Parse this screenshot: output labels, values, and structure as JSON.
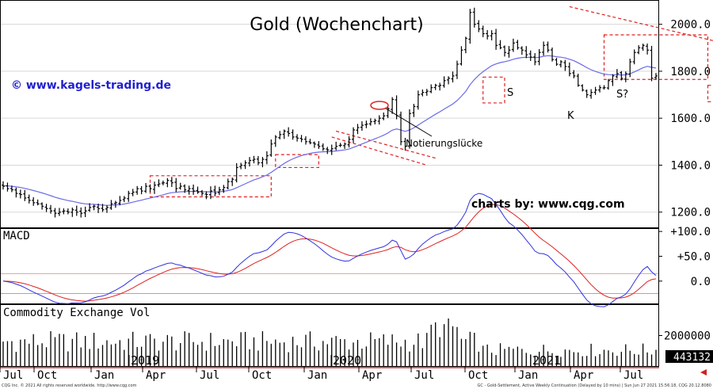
{
  "chart_data": [
    {
      "type": "ohlc",
      "title": "Gold (Wochenchart)",
      "watermark": "© www.kagels-trading.de",
      "credit": "charts by: www.cqg.com",
      "y_ticks": [
        "2000.0",
        "1800.0",
        "1600.0",
        "1400.0",
        "1200.0"
      ],
      "ylim": [
        1135,
        2100
      ],
      "x_ticks": [
        "Jul",
        "Oct",
        "Jan",
        "Apr",
        "Jul",
        "Oct",
        "Jan",
        "Apr",
        "Jul",
        "Oct",
        "Jan",
        "Apr",
        "Jul"
      ],
      "year_labels": [
        "2019",
        "2020",
        "2021"
      ],
      "close": [
        1310,
        1300,
        1295,
        1280,
        1275,
        1260,
        1250,
        1240,
        1235,
        1225,
        1215,
        1205,
        1195,
        1200,
        1205,
        1200,
        1210,
        1200,
        1195,
        1205,
        1220,
        1225,
        1215,
        1210,
        1220,
        1235,
        1240,
        1250,
        1260,
        1280,
        1285,
        1300,
        1290,
        1310,
        1300,
        1315,
        1320,
        1325,
        1335,
        1325,
        1300,
        1310,
        1295,
        1300,
        1290,
        1285,
        1280,
        1275,
        1290,
        1280,
        1295,
        1305,
        1330,
        1340,
        1390,
        1400,
        1410,
        1420,
        1425,
        1410,
        1425,
        1440,
        1490,
        1520,
        1530,
        1545,
        1535,
        1520,
        1515,
        1510,
        1500,
        1495,
        1490,
        1480,
        1470,
        1465,
        1470,
        1480,
        1485,
        1490,
        1510,
        1550,
        1560,
        1570,
        1575,
        1585,
        1590,
        1600,
        1610,
        1640,
        1680,
        1610,
        1500,
        1480,
        1620,
        1650,
        1700,
        1710,
        1715,
        1730,
        1740,
        1740,
        1760,
        1770,
        1780,
        1830,
        1890,
        1940,
        2050,
        2000,
        1980,
        1960,
        1950,
        1960,
        1910,
        1900,
        1880,
        1890,
        1920,
        1900,
        1890,
        1870,
        1860,
        1840,
        1880,
        1910,
        1890,
        1850,
        1830,
        1840,
        1820,
        1790,
        1780,
        1740,
        1720,
        1700,
        1710,
        1720,
        1730,
        1730,
        1760,
        1780,
        1790,
        1770,
        1790,
        1840,
        1880,
        1900,
        1910,
        1890,
        1770,
        1780
      ],
      "ma_start": 1313,
      "patterns": [
        {
          "type": "rect",
          "i0": 34,
          "i1": 62,
          "v0": 1265,
          "v1": 1355
        },
        {
          "type": "rect",
          "i0": 63,
          "i1": 73,
          "v0": 1390,
          "v1": 1445
        },
        {
          "type": "rect",
          "i0": 111,
          "i1": 116,
          "v0": 1665,
          "v1": 1775
        },
        {
          "type": "rect",
          "i0": 139,
          "i1": 163,
          "v0": 1765,
          "v1": 1955
        },
        {
          "type": "rect",
          "i0": 163,
          "i1": 173,
          "v0": 1670,
          "v1": 1740
        },
        {
          "type": "line",
          "i0": 77,
          "v0": 1545,
          "i1": 100,
          "v1": 1430
        },
        {
          "type": "line",
          "i0": 76,
          "v0": 1520,
          "i1": 98,
          "v1": 1400
        },
        {
          "type": "line",
          "i0": 131,
          "v0": 2075,
          "i1": 193,
          "v1": 1805
        }
      ],
      "annotations": {
        "notierungsluecke": "Notierungslücke",
        "s_left": "S",
        "s_right": "S?",
        "k": "K"
      }
    },
    {
      "type": "line",
      "title": "MACD",
      "y_ticks": [
        "+100.0",
        "+50.0",
        "0.0"
      ],
      "ylim": [
        -45,
        105
      ]
    },
    {
      "type": "bar",
      "title": "Commodity Exchange Vol",
      "y_ticks": [
        "2000000"
      ],
      "last_value": "443132"
    }
  ],
  "footer": {
    "left": "CQG Inc. © 2021 All rights reserved worldwide. http://www.cqg.com",
    "right": "GC - Gold-Settlement, Active Weekly Continuation (Delayed by 10 mins) | Sun Jun 27 2021 15:56:18, CQG 20.12.8080"
  }
}
